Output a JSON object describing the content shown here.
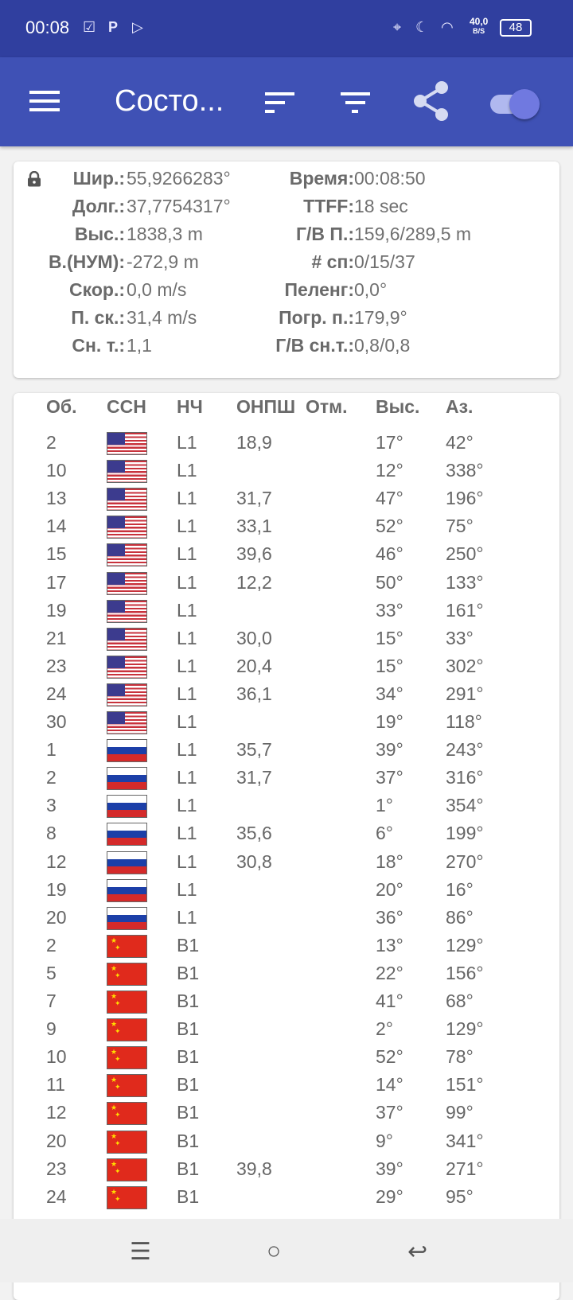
{
  "status_bar": {
    "time": "00:08",
    "net_speed": "40,0",
    "net_unit": "B/S",
    "battery": "48",
    "icons": [
      "checkbox-notification-icon",
      "parking-app-icon",
      "play-store-icon",
      "location-icon",
      "moon-icon",
      "wifi-icon",
      "battery-icon"
    ]
  },
  "app_bar": {
    "title": "Состо...",
    "icons": [
      "menu-icon",
      "sort-icon",
      "filter-icon",
      "share-icon",
      "toggle-switch"
    ],
    "toggle_on": true
  },
  "colors": {
    "status_bar": "#303f9f",
    "app_bar": "#3f51b5",
    "us_red": "#c8323c",
    "cn_red": "#e02a1c"
  },
  "info": {
    "rows": [
      {
        "l1": "Шир.:",
        "v1": "55,9266283°",
        "l2": "Время:",
        "v2": "00:08:50"
      },
      {
        "l1": "Долг.:",
        "v1": "37,7754317°",
        "l2": "TTFF:",
        "v2": "18 sec"
      },
      {
        "l1": "Выс.:",
        "v1": "1838,3 m",
        "l2": "Г/В П.:",
        "v2": "159,6/289,5 m"
      },
      {
        "l1": "В.(НУМ):",
        "v1": "-272,9 m",
        "l2": "# сп:",
        "v2": "0/15/37"
      },
      {
        "l1": "Скор.:",
        "v1": "0,0 m/s",
        "l2": "Пеленг:",
        "v2": "0,0°"
      },
      {
        "l1": "П. ск.:",
        "v1": "31,4 m/s",
        "l2": "Погр. п.:",
        "v2": "179,9°"
      },
      {
        "l1": "Сн. т.:",
        "v1": "1,1",
        "l2": "Г/В сн.т.:",
        "v2": "0,8/0,8"
      }
    ]
  },
  "table": {
    "headers": [
      "Об.",
      "ССН",
      "НЧ",
      "ОНПШ",
      "Отм.",
      "Выс.",
      "Аз."
    ],
    "rows": [
      {
        "id": "2",
        "flag": "us",
        "freq": "L1",
        "cn0": "18,9",
        "flags": "",
        "elev": "17°",
        "az": "42°"
      },
      {
        "id": "10",
        "flag": "us",
        "freq": "L1",
        "cn0": "",
        "flags": "",
        "elev": "12°",
        "az": "338°"
      },
      {
        "id": "13",
        "flag": "us",
        "freq": "L1",
        "cn0": "31,7",
        "flags": "",
        "elev": "47°",
        "az": "196°"
      },
      {
        "id": "14",
        "flag": "us",
        "freq": "L1",
        "cn0": "33,1",
        "flags": "",
        "elev": "52°",
        "az": "75°"
      },
      {
        "id": "15",
        "flag": "us",
        "freq": "L1",
        "cn0": "39,6",
        "flags": "",
        "elev": "46°",
        "az": "250°"
      },
      {
        "id": "17",
        "flag": "us",
        "freq": "L1",
        "cn0": "12,2",
        "flags": "",
        "elev": "50°",
        "az": "133°"
      },
      {
        "id": "19",
        "flag": "us",
        "freq": "L1",
        "cn0": "",
        "flags": "",
        "elev": "33°",
        "az": "161°"
      },
      {
        "id": "21",
        "flag": "us",
        "freq": "L1",
        "cn0": "30,0",
        "flags": "",
        "elev": "15°",
        "az": "33°"
      },
      {
        "id": "23",
        "flag": "us",
        "freq": "L1",
        "cn0": "20,4",
        "flags": "",
        "elev": "15°",
        "az": "302°"
      },
      {
        "id": "24",
        "flag": "us",
        "freq": "L1",
        "cn0": "36,1",
        "flags": "",
        "elev": "34°",
        "az": "291°"
      },
      {
        "id": "30",
        "flag": "us",
        "freq": "L1",
        "cn0": "",
        "flags": "",
        "elev": "19°",
        "az": "118°"
      },
      {
        "id": "1",
        "flag": "ru",
        "freq": "L1",
        "cn0": "35,7",
        "flags": "",
        "elev": "39°",
        "az": "243°"
      },
      {
        "id": "2",
        "flag": "ru",
        "freq": "L1",
        "cn0": "31,7",
        "flags": "",
        "elev": "37°",
        "az": "316°"
      },
      {
        "id": "3",
        "flag": "ru",
        "freq": "L1",
        "cn0": "",
        "flags": "",
        "elev": "1°",
        "az": "354°"
      },
      {
        "id": "8",
        "flag": "ru",
        "freq": "L1",
        "cn0": "35,6",
        "flags": "",
        "elev": "6°",
        "az": "199°"
      },
      {
        "id": "12",
        "flag": "ru",
        "freq": "L1",
        "cn0": "30,8",
        "flags": "",
        "elev": "18°",
        "az": "270°"
      },
      {
        "id": "19",
        "flag": "ru",
        "freq": "L1",
        "cn0": "",
        "flags": "",
        "elev": "20°",
        "az": "16°"
      },
      {
        "id": "20",
        "flag": "ru",
        "freq": "L1",
        "cn0": "",
        "flags": "",
        "elev": "36°",
        "az": "86°"
      },
      {
        "id": "2",
        "flag": "cn",
        "freq": "B1",
        "cn0": "",
        "flags": "",
        "elev": "13°",
        "az": "129°"
      },
      {
        "id": "5",
        "flag": "cn",
        "freq": "B1",
        "cn0": "",
        "flags": "",
        "elev": "22°",
        "az": "156°"
      },
      {
        "id": "7",
        "flag": "cn",
        "freq": "B1",
        "cn0": "",
        "flags": "",
        "elev": "41°",
        "az": "68°"
      },
      {
        "id": "9",
        "flag": "cn",
        "freq": "B1",
        "cn0": "",
        "flags": "",
        "elev": "2°",
        "az": "129°"
      },
      {
        "id": "10",
        "flag": "cn",
        "freq": "B1",
        "cn0": "",
        "flags": "",
        "elev": "52°",
        "az": "78°"
      },
      {
        "id": "11",
        "flag": "cn",
        "freq": "B1",
        "cn0": "",
        "flags": "",
        "elev": "14°",
        "az": "151°"
      },
      {
        "id": "12",
        "flag": "cn",
        "freq": "B1",
        "cn0": "",
        "flags": "",
        "elev": "37°",
        "az": "99°"
      },
      {
        "id": "20",
        "flag": "cn",
        "freq": "B1",
        "cn0": "",
        "flags": "",
        "elev": "9°",
        "az": "341°"
      },
      {
        "id": "23",
        "flag": "cn",
        "freq": "B1",
        "cn0": "39,8",
        "flags": "",
        "elev": "39°",
        "az": "271°"
      },
      {
        "id": "24",
        "flag": "cn",
        "freq": "B1",
        "cn0": "",
        "flags": "",
        "elev": "29°",
        "az": "95°"
      }
    ]
  },
  "nav_bar": {
    "icons": [
      "recents-icon",
      "home-icon",
      "back-icon"
    ]
  }
}
